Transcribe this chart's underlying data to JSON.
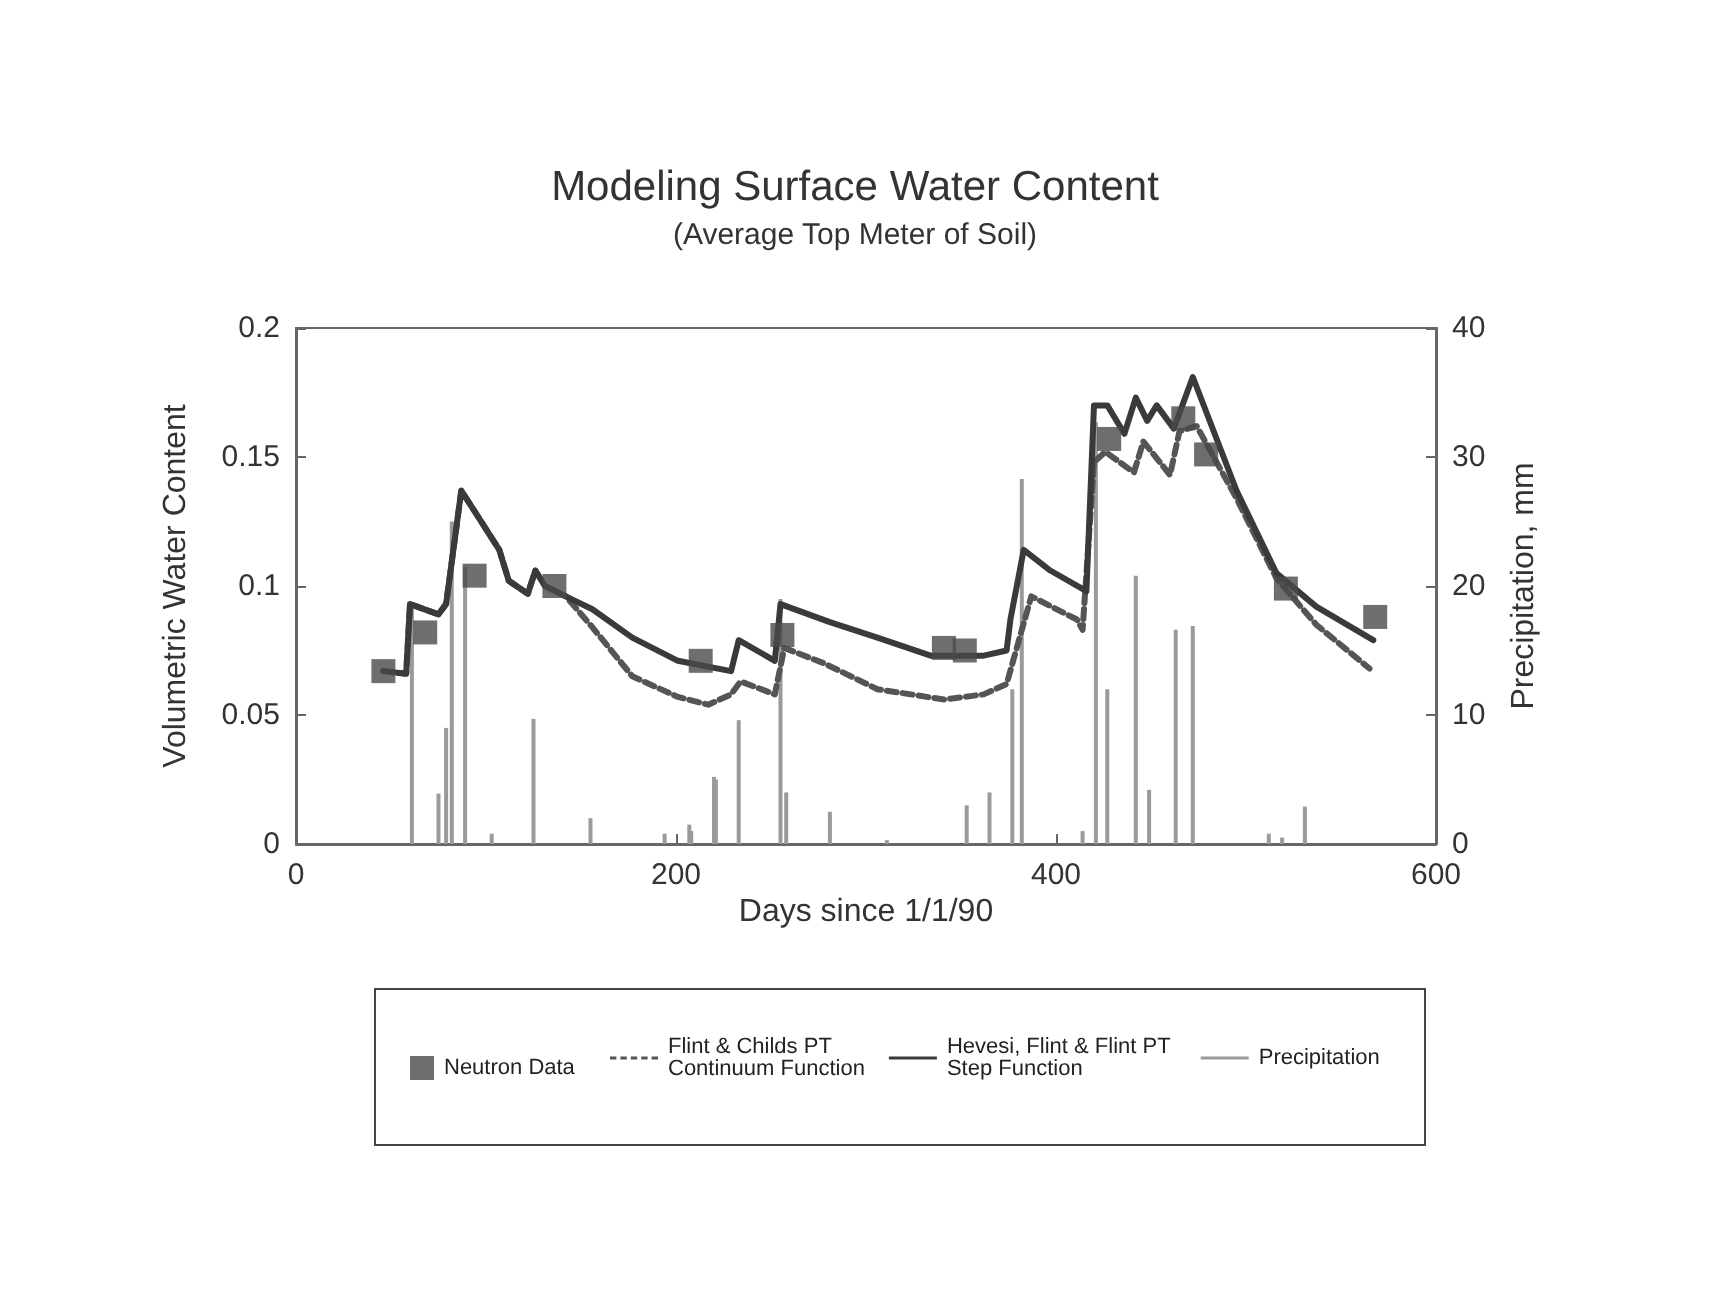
{
  "chart_data": {
    "type": "line",
    "title": "Modeling Surface Water Content",
    "subtitle": "(Average Top Meter of Soil)",
    "xlabel": "Days since 1/1/90",
    "ylabel": "Volumetric Water Content",
    "y2label": "Precipitation, mm",
    "xlim": [
      0,
      600
    ],
    "xticks": [
      0,
      200,
      400,
      600
    ],
    "ylim": [
      0,
      0.2
    ],
    "yticks": [
      0,
      0.05,
      0.1,
      0.15,
      0.2
    ],
    "y2lim": [
      0,
      40
    ],
    "y2ticks": [
      0,
      10,
      20,
      30,
      40
    ],
    "grid": false,
    "legend": "bottom",
    "series": [
      {
        "name": "Neutron Data",
        "type": "scatter",
        "marker": "square",
        "color": "#4a4a4a",
        "x": [
          46,
          68,
          94,
          136,
          213,
          256,
          341,
          352,
          428,
          467,
          479,
          521,
          568
        ],
        "values": [
          0.067,
          0.082,
          0.104,
          0.1,
          0.071,
          0.081,
          0.076,
          0.075,
          0.157,
          0.165,
          0.151,
          0.099,
          0.088
        ]
      },
      {
        "name": "Flint & Childs PT Continuum Function",
        "line_style": "dashed",
        "color": "#555555",
        "x": [
          46,
          58,
          60,
          75,
          79,
          87,
          107,
          112,
          122,
          126,
          131,
          142,
          156,
          177,
          201,
          217,
          229,
          234,
          252,
          257,
          278,
          306,
          341,
          362,
          374,
          387,
          411,
          414,
          420,
          426,
          441,
          446,
          460,
          465,
          474,
          495,
          516,
          537,
          565
        ],
        "values": [
          0.067,
          0.066,
          0.093,
          0.089,
          0.093,
          0.137,
          0.114,
          0.102,
          0.097,
          0.106,
          0.1,
          0.096,
          0.084,
          0.065,
          0.057,
          0.054,
          0.058,
          0.063,
          0.058,
          0.076,
          0.07,
          0.06,
          0.056,
          0.058,
          0.062,
          0.096,
          0.087,
          0.083,
          0.148,
          0.152,
          0.144,
          0.156,
          0.143,
          0.16,
          0.162,
          0.134,
          0.103,
          0.085,
          0.068
        ]
      },
      {
        "name": "Hevesi, Flint & Flint PT Step Function",
        "line_style": "solid",
        "color": "#3a3a3a",
        "x": [
          46,
          58,
          60,
          75,
          79,
          87,
          107,
          112,
          122,
          126,
          131,
          142,
          156,
          177,
          201,
          215,
          229,
          233,
          252,
          255,
          281,
          306,
          334,
          362,
          374,
          376,
          383,
          397,
          416,
          420,
          427,
          436,
          442,
          448,
          453,
          462,
          465,
          472,
          495,
          516,
          537,
          567
        ],
        "values": [
          0.067,
          0.066,
          0.093,
          0.089,
          0.093,
          0.137,
          0.114,
          0.102,
          0.097,
          0.106,
          0.1,
          0.096,
          0.091,
          0.08,
          0.071,
          0.069,
          0.067,
          0.079,
          0.071,
          0.093,
          0.086,
          0.08,
          0.073,
          0.073,
          0.075,
          0.087,
          0.114,
          0.106,
          0.098,
          0.17,
          0.17,
          0.159,
          0.173,
          0.164,
          0.17,
          0.161,
          0.167,
          0.181,
          0.137,
          0.105,
          0.092,
          0.079
        ]
      },
      {
        "name": "Precipitation",
        "type": "bar",
        "axis": "y2",
        "color": "#9a9a9a",
        "x": [
          61,
          75,
          79,
          82,
          89,
          103,
          125,
          155,
          194,
          207,
          208,
          220,
          221,
          233,
          255,
          258,
          281,
          311,
          353,
          365,
          377,
          382,
          414,
          421,
          427,
          442,
          449,
          463,
          472,
          512,
          519,
          531
        ],
        "values": [
          18.6,
          3.9,
          9,
          25,
          21.5,
          0.8,
          9.7,
          2,
          0.8,
          1.5,
          1,
          5.2,
          5,
          9.6,
          19,
          4,
          2.5,
          0.3,
          3,
          4,
          12,
          28.3,
          1,
          32.7,
          12,
          20.8,
          4.2,
          16.6,
          16.9,
          0.8,
          0.5,
          2.9
        ]
      }
    ]
  }
}
